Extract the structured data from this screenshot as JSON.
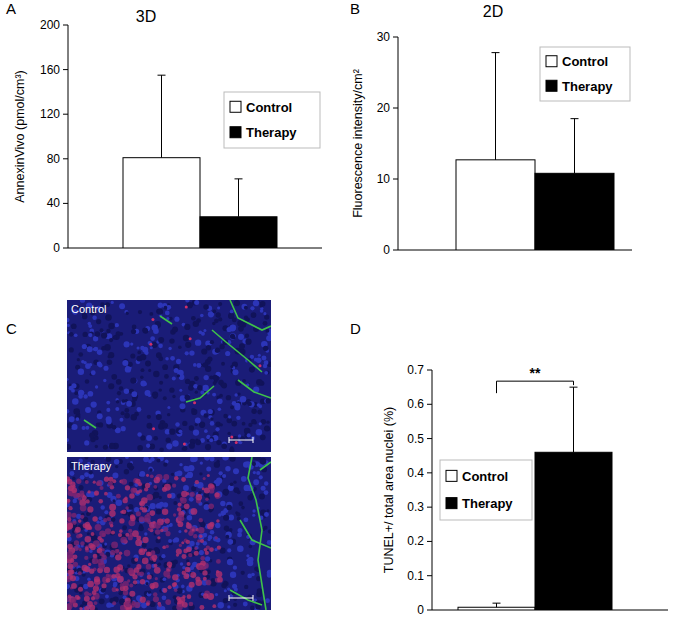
{
  "chart_data": [
    {
      "type": "bar",
      "title": "3D",
      "y_label": "AnnexinVivo (pmol/cm³)",
      "categories": [
        null
      ],
      "series": [
        {
          "name": "Control",
          "color": "#ffffff",
          "values": [
            81
          ],
          "errors": [
            74
          ]
        },
        {
          "name": "Therapy",
          "color": "#000000",
          "values": [
            28
          ],
          "errors": [
            34
          ]
        }
      ],
      "ylim": [
        0,
        200
      ],
      "yticks": [
        0,
        40,
        80,
        120,
        160,
        200
      ],
      "legend": "upper right",
      "tick_labels": "y"
    },
    {
      "type": "bar",
      "title": "2D",
      "y_label": "Fluorescence intensity/cm²",
      "categories": [
        null
      ],
      "series": [
        {
          "name": "Control",
          "color": "#ffffff",
          "values": [
            12.7
          ],
          "errors": [
            15.1
          ]
        },
        {
          "name": "Therapy",
          "color": "#000000",
          "values": [
            10.8
          ],
          "errors": [
            7.7
          ]
        }
      ],
      "ylim": [
        0,
        30
      ],
      "yticks": [
        0,
        10,
        20,
        30
      ],
      "legend": "upper right",
      "tick_labels": "y"
    },
    {
      "type": "bar",
      "y_label": "TUNEL+/ total area nuclei (%)",
      "categories": [
        null
      ],
      "series": [
        {
          "name": "Control",
          "color": "#ffffff",
          "values": [
            0.008
          ],
          "errors": [
            0.012
          ]
        },
        {
          "name": "Therapy",
          "color": "#000000",
          "values": [
            0.46
          ],
          "errors": [
            0.19
          ]
        }
      ],
      "ylim": [
        0,
        0.7
      ],
      "yticks": [
        0,
        0.1,
        0.2,
        0.3,
        0.4,
        0.5,
        0.6,
        0.7
      ],
      "annotation": "**",
      "legend": "center left",
      "tick_labels": "y"
    }
  ],
  "figure": {
    "panel_labels": [
      "A",
      "B",
      "C",
      "D"
    ],
    "images": [
      {
        "label": "Control"
      },
      {
        "label": "Therapy"
      }
    ]
  }
}
